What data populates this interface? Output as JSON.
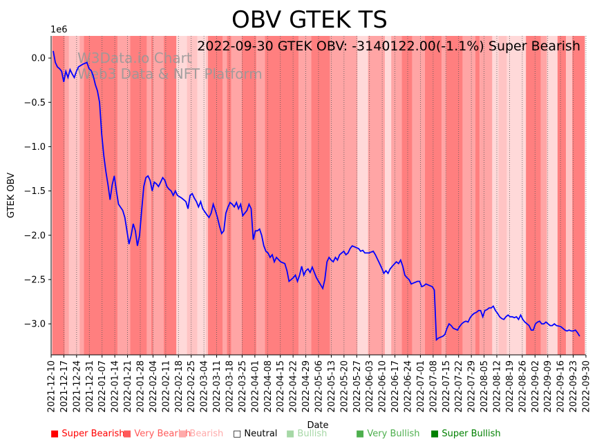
{
  "chart_data": {
    "type": "line",
    "title": "OBV GTEK TS",
    "annotation": "2022-09-30 GTEK OBV: -3140122.00(-1.1%) Super Bearish",
    "watermark": [
      "W3Data.io Chart",
      "Web3 Data & NFT Platform"
    ],
    "xlabel": "Date",
    "ylabel": "GTEK OBV",
    "y_offset_label": "1e6",
    "ylim": [
      -3.35,
      0.25
    ],
    "yticks": [
      0.0,
      -0.5,
      -1.0,
      -1.5,
      -2.0,
      -2.5,
      -3.0
    ],
    "ytick_labels": [
      "0.0",
      "−0.5",
      "−1.0",
      "−1.5",
      "−2.0",
      "−2.5",
      "−3.0"
    ],
    "x_start": "2021-12-10",
    "x_end": "2022-09-30",
    "xtick_labels": [
      "2021-12-10",
      "2021-12-17",
      "2021-12-24",
      "2021-12-31",
      "2022-01-07",
      "2022-01-14",
      "2022-01-21",
      "2022-01-28",
      "2022-02-04",
      "2022-02-11",
      "2022-02-18",
      "2022-02-25",
      "2022-03-04",
      "2022-03-11",
      "2022-03-18",
      "2022-03-25",
      "2022-04-01",
      "2022-04-08",
      "2022-04-15",
      "2022-04-22",
      "2022-04-29",
      "2022-05-06",
      "2022-05-13",
      "2022-05-20",
      "2022-05-27",
      "2022-06-03",
      "2022-06-10",
      "2022-06-17",
      "2022-06-24",
      "2022-07-01",
      "2022-07-08",
      "2022-07-15",
      "2022-07-22",
      "2022-07-29",
      "2022-08-05",
      "2022-08-12",
      "2022-08-19",
      "2022-08-26",
      "2022-09-02",
      "2022-09-09",
      "2022-09-16",
      "2022-09-23",
      "2022-09-30"
    ],
    "line_color": "#0000ff",
    "series": [
      {
        "name": "GTEK OBV",
        "points": [
          [
            0,
            0.08
          ],
          [
            1,
            -0.05
          ],
          [
            2,
            -0.1
          ],
          [
            3,
            -0.12
          ],
          [
            4,
            -0.15
          ],
          [
            5,
            -0.27
          ],
          [
            6,
            -0.15
          ],
          [
            7,
            -0.22
          ],
          [
            8,
            -0.13
          ],
          [
            9,
            -0.18
          ],
          [
            10,
            -0.22
          ],
          [
            11,
            -0.15
          ],
          [
            12,
            -0.1
          ],
          [
            14,
            -0.07
          ],
          [
            16,
            -0.05
          ],
          [
            17,
            -0.12
          ],
          [
            18,
            -0.14
          ],
          [
            19,
            -0.2
          ],
          [
            20,
            -0.3
          ],
          [
            21,
            -0.37
          ],
          [
            22,
            -0.5
          ],
          [
            23,
            -0.85
          ],
          [
            24,
            -1.1
          ],
          [
            25,
            -1.28
          ],
          [
            26,
            -1.43
          ],
          [
            27,
            -1.6
          ],
          [
            28,
            -1.43
          ],
          [
            29,
            -1.33
          ],
          [
            30,
            -1.5
          ],
          [
            31,
            -1.65
          ],
          [
            33,
            -1.72
          ],
          [
            34,
            -1.8
          ],
          [
            35,
            -1.95
          ],
          [
            36,
            -2.1
          ],
          [
            37,
            -2.0
          ],
          [
            38,
            -1.87
          ],
          [
            39,
            -1.95
          ],
          [
            40,
            -2.12
          ],
          [
            41,
            -2.0
          ],
          [
            42,
            -1.72
          ],
          [
            43,
            -1.45
          ],
          [
            44,
            -1.35
          ],
          [
            45,
            -1.33
          ],
          [
            46,
            -1.38
          ],
          [
            47,
            -1.5
          ],
          [
            48,
            -1.4
          ],
          [
            49,
            -1.42
          ],
          [
            50,
            -1.45
          ],
          [
            51,
            -1.4
          ],
          [
            52,
            -1.35
          ],
          [
            53,
            -1.38
          ],
          [
            54,
            -1.45
          ],
          [
            55,
            -1.48
          ],
          [
            56,
            -1.5
          ],
          [
            57,
            -1.55
          ],
          [
            58,
            -1.5
          ],
          [
            59,
            -1.55
          ],
          [
            61,
            -1.58
          ],
          [
            62,
            -1.6
          ],
          [
            63,
            -1.62
          ],
          [
            64,
            -1.7
          ],
          [
            65,
            -1.55
          ],
          [
            66,
            -1.53
          ],
          [
            67,
            -1.58
          ],
          [
            68,
            -1.62
          ],
          [
            69,
            -1.68
          ],
          [
            70,
            -1.62
          ],
          [
            71,
            -1.7
          ],
          [
            73,
            -1.77
          ],
          [
            74,
            -1.8
          ],
          [
            75,
            -1.75
          ],
          [
            76,
            -1.65
          ],
          [
            77,
            -1.72
          ],
          [
            78,
            -1.8
          ],
          [
            79,
            -1.9
          ],
          [
            80,
            -1.98
          ],
          [
            81,
            -1.95
          ],
          [
            82,
            -1.75
          ],
          [
            83,
            -1.68
          ],
          [
            84,
            -1.63
          ],
          [
            85,
            -1.65
          ],
          [
            86,
            -1.68
          ],
          [
            87,
            -1.63
          ],
          [
            88,
            -1.7
          ],
          [
            89,
            -1.65
          ],
          [
            90,
            -1.78
          ],
          [
            91,
            -1.75
          ],
          [
            92,
            -1.72
          ],
          [
            93,
            -1.65
          ],
          [
            94,
            -1.7
          ],
          [
            95,
            -2.05
          ],
          [
            96,
            -1.95
          ],
          [
            97,
            -1.95
          ],
          [
            98,
            -1.93
          ],
          [
            99,
            -2.0
          ],
          [
            100,
            -2.12
          ],
          [
            101,
            -2.18
          ],
          [
            102,
            -2.2
          ],
          [
            103,
            -2.25
          ],
          [
            104,
            -2.22
          ],
          [
            105,
            -2.3
          ],
          [
            106,
            -2.25
          ],
          [
            108,
            -2.3
          ],
          [
            110,
            -2.32
          ],
          [
            111,
            -2.4
          ],
          [
            112,
            -2.52
          ],
          [
            113,
            -2.5
          ],
          [
            114,
            -2.48
          ],
          [
            115,
            -2.45
          ],
          [
            116,
            -2.52
          ],
          [
            117,
            -2.45
          ],
          [
            118,
            -2.35
          ],
          [
            119,
            -2.45
          ],
          [
            120,
            -2.4
          ],
          [
            121,
            -2.38
          ],
          [
            122,
            -2.42
          ],
          [
            123,
            -2.36
          ],
          [
            124,
            -2.42
          ],
          [
            125,
            -2.48
          ],
          [
            126,
            -2.52
          ],
          [
            127,
            -2.56
          ],
          [
            128,
            -2.6
          ],
          [
            129,
            -2.5
          ],
          [
            130,
            -2.3
          ],
          [
            131,
            -2.25
          ],
          [
            132,
            -2.28
          ],
          [
            133,
            -2.3
          ],
          [
            134,
            -2.25
          ],
          [
            135,
            -2.28
          ],
          [
            136,
            -2.22
          ],
          [
            137,
            -2.2
          ],
          [
            138,
            -2.18
          ],
          [
            139,
            -2.22
          ],
          [
            140,
            -2.2
          ],
          [
            141,
            -2.15
          ],
          [
            142,
            -2.12
          ],
          [
            143,
            -2.13
          ],
          [
            145,
            -2.15
          ],
          [
            146,
            -2.18
          ],
          [
            147,
            -2.17
          ],
          [
            148,
            -2.2
          ],
          [
            150,
            -2.2
          ],
          [
            151,
            -2.19
          ],
          [
            152,
            -2.18
          ],
          [
            153,
            -2.22
          ],
          [
            154,
            -2.27
          ],
          [
            155,
            -2.32
          ],
          [
            156,
            -2.37
          ],
          [
            157,
            -2.43
          ],
          [
            158,
            -2.4
          ],
          [
            159,
            -2.43
          ],
          [
            160,
            -2.38
          ],
          [
            161,
            -2.35
          ],
          [
            163,
            -2.3
          ],
          [
            164,
            -2.32
          ],
          [
            165,
            -2.28
          ],
          [
            166,
            -2.35
          ],
          [
            167,
            -2.45
          ],
          [
            168,
            -2.48
          ],
          [
            169,
            -2.5
          ],
          [
            170,
            -2.55
          ],
          [
            171,
            -2.54
          ],
          [
            173,
            -2.52
          ],
          [
            174,
            -2.52
          ],
          [
            175,
            -2.58
          ],
          [
            176,
            -2.57
          ],
          [
            177,
            -2.55
          ],
          [
            179,
            -2.57
          ],
          [
            180,
            -2.58
          ],
          [
            181,
            -2.62
          ],
          [
            182,
            -3.18
          ],
          [
            183,
            -3.16
          ],
          [
            184,
            -3.15
          ],
          [
            185,
            -3.14
          ],
          [
            186,
            -3.12
          ],
          [
            187,
            -3.05
          ],
          [
            188,
            -3.0
          ],
          [
            189,
            -3.02
          ],
          [
            190,
            -3.05
          ],
          [
            191,
            -3.06
          ],
          [
            192,
            -3.07
          ],
          [
            193,
            -3.03
          ],
          [
            194,
            -3.0
          ],
          [
            195,
            -2.98
          ],
          [
            196,
            -2.97
          ],
          [
            197,
            -2.98
          ],
          [
            198,
            -2.93
          ],
          [
            199,
            -2.9
          ],
          [
            200,
            -2.88
          ],
          [
            201,
            -2.87
          ],
          [
            202,
            -2.85
          ],
          [
            203,
            -2.85
          ],
          [
            204,
            -2.92
          ],
          [
            205,
            -2.85
          ],
          [
            206,
            -2.84
          ],
          [
            207,
            -2.82
          ],
          [
            208,
            -2.82
          ],
          [
            209,
            -2.8
          ],
          [
            210,
            -2.85
          ],
          [
            211,
            -2.88
          ],
          [
            212,
            -2.92
          ],
          [
            213,
            -2.94
          ],
          [
            214,
            -2.95
          ],
          [
            215,
            -2.92
          ],
          [
            216,
            -2.9
          ],
          [
            217,
            -2.92
          ],
          [
            218,
            -2.92
          ],
          [
            219,
            -2.93
          ],
          [
            220,
            -2.92
          ],
          [
            221,
            -2.95
          ],
          [
            222,
            -2.9
          ],
          [
            223,
            -2.95
          ],
          [
            224,
            -2.98
          ],
          [
            225,
            -3.0
          ],
          [
            226,
            -3.02
          ],
          [
            227,
            -3.07
          ],
          [
            228,
            -3.07
          ],
          [
            229,
            -3.0
          ],
          [
            230,
            -2.98
          ],
          [
            231,
            -2.97
          ],
          [
            232,
            -3.0
          ],
          [
            233,
            -3.0
          ],
          [
            234,
            -2.98
          ],
          [
            235,
            -3.0
          ],
          [
            236,
            -3.02
          ],
          [
            237,
            -3.02
          ],
          [
            238,
            -3.0
          ],
          [
            239,
            -3.02
          ],
          [
            241,
            -3.03
          ],
          [
            242,
            -3.05
          ],
          [
            243,
            -3.07
          ],
          [
            244,
            -3.08
          ],
          [
            245,
            -3.07
          ],
          [
            246,
            -3.08
          ],
          [
            247,
            -3.08
          ],
          [
            248,
            -3.07
          ],
          [
            249,
            -3.1
          ],
          [
            250,
            -3.14
          ]
        ]
      }
    ],
    "bands": [
      [
        0,
        6,
        "super"
      ],
      [
        6,
        8,
        "very"
      ],
      [
        8,
        13,
        "bearish"
      ],
      [
        13,
        15,
        "very"
      ],
      [
        15,
        31,
        "super"
      ],
      [
        31,
        37,
        "very"
      ],
      [
        37,
        45,
        "super"
      ],
      [
        45,
        47,
        "very"
      ],
      [
        47,
        48,
        "super"
      ],
      [
        48,
        53,
        "very"
      ],
      [
        53,
        59,
        "super"
      ],
      [
        59,
        64,
        "neutral"
      ],
      [
        64,
        69,
        "bearish"
      ],
      [
        69,
        73,
        "neutral"
      ],
      [
        73,
        74,
        "bearish"
      ],
      [
        74,
        81,
        "super"
      ],
      [
        81,
        83,
        "very"
      ],
      [
        83,
        85,
        "super"
      ],
      [
        85,
        90,
        "very"
      ],
      [
        90,
        97,
        "super"
      ],
      [
        97,
        101,
        "very"
      ],
      [
        101,
        117,
        "super"
      ],
      [
        117,
        123,
        "very"
      ],
      [
        123,
        132,
        "super"
      ],
      [
        132,
        145,
        "very"
      ],
      [
        145,
        150,
        "neutral"
      ],
      [
        150,
        158,
        "very"
      ],
      [
        158,
        161,
        "neutral"
      ],
      [
        161,
        166,
        "very"
      ],
      [
        166,
        171,
        "super"
      ],
      [
        171,
        177,
        "very"
      ],
      [
        177,
        185,
        "super"
      ],
      [
        185,
        187,
        "very"
      ],
      [
        187,
        195,
        "super"
      ],
      [
        195,
        201,
        "very"
      ],
      [
        201,
        203,
        "super"
      ],
      [
        203,
        209,
        "very"
      ],
      [
        209,
        212,
        "neutral"
      ],
      [
        212,
        216,
        "bearish"
      ],
      [
        216,
        225,
        "neutral"
      ],
      [
        225,
        232,
        "super"
      ],
      [
        232,
        235,
        "very"
      ],
      [
        235,
        240,
        "neutral"
      ],
      [
        240,
        244,
        "super"
      ],
      [
        244,
        247,
        "bearish"
      ],
      [
        247,
        253,
        "super"
      ]
    ],
    "band_colors": {
      "super": "#ff7f7f",
      "very": "#ffa5a5",
      "bearish": "#ffc4c4",
      "neutral": "#ffd9d9"
    },
    "legend": [
      {
        "label": "■ Super Bearish",
        "color": "#ff0000"
      },
      {
        "label": "■ Very Bearish",
        "color": "#ff5a5a"
      },
      {
        "label": "■ Bearish",
        "color": "#ffaaaa"
      },
      {
        "label": "□ Neutral",
        "color": "#000000"
      },
      {
        "label": "■ Bullish",
        "color": "#a6d8a6"
      },
      {
        "label": "■ Very Bullish",
        "color": "#4daf4d"
      },
      {
        "label": "■ Super Bullish",
        "color": "#008000"
      }
    ]
  }
}
